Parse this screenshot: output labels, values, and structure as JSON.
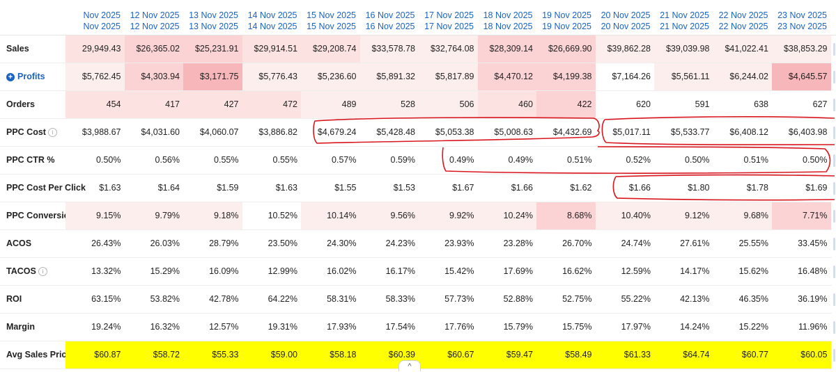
{
  "columns": [
    {
      "line1": "Nov 2025",
      "line2": "Nov 2025"
    },
    {
      "line1": "12 Nov 2025",
      "line2": "12 Nov 2025"
    },
    {
      "line1": "13 Nov 2025",
      "line2": "13 Nov 2025"
    },
    {
      "line1": "14 Nov 2025",
      "line2": "14 Nov 2025"
    },
    {
      "line1": "15 Nov 2025",
      "line2": "15 Nov 2025"
    },
    {
      "line1": "16 Nov 2025",
      "line2": "16 Nov 2025"
    },
    {
      "line1": "17 Nov 2025",
      "line2": "17 Nov 2025"
    },
    {
      "line1": "18 Nov 2025",
      "line2": "18 Nov 2025"
    },
    {
      "line1": "19 Nov 2025",
      "line2": "19 Nov 2025"
    },
    {
      "line1": "20 Nov 2025",
      "line2": "20 Nov 2025"
    },
    {
      "line1": "21 Nov 2025",
      "line2": "21 Nov 2025"
    },
    {
      "line1": "22 Nov 2025",
      "line2": "22 Nov 2025"
    },
    {
      "line1": "23 Nov 2025",
      "line2": "23 Nov 2025"
    }
  ],
  "rows": [
    {
      "key": "sales",
      "label": "Sales",
      "icon": null,
      "values": [
        "29,949.43",
        "$26,365.02",
        "$25,231.91",
        "$29,914.51",
        "$29,208.74",
        "$33,578.78",
        "$32,764.08",
        "$28,309.14",
        "$26,669.90",
        "$39,862.28",
        "$39,039.98",
        "$41,022.41",
        "$38,853.29"
      ],
      "shades": [
        2,
        3,
        3,
        2,
        2,
        1,
        1,
        3,
        3,
        1,
        1,
        1,
        1
      ]
    },
    {
      "key": "profits",
      "label": "Profits",
      "icon": "plus-circle-icon",
      "values": [
        "$5,762.45",
        "$4,303.94",
        "$3,171.75",
        "$5,776.43",
        "$5,236.60",
        "$5,891.32",
        "$5,817.89",
        "$4,470.12",
        "$4,199.38",
        "$7,164.26",
        "$5,561.11",
        "$6,244.02",
        "$4,645.57"
      ],
      "shades": [
        1,
        3,
        4,
        1,
        1,
        1,
        1,
        3,
        3,
        0,
        1,
        1,
        4
      ]
    },
    {
      "key": "orders",
      "label": "Orders",
      "icon": null,
      "values": [
        "454",
        "417",
        "427",
        "472",
        "489",
        "528",
        "506",
        "460",
        "422",
        "620",
        "591",
        "638",
        "627"
      ],
      "shades": [
        2,
        2,
        2,
        2,
        1,
        1,
        1,
        2,
        3,
        0,
        0,
        0,
        0
      ]
    },
    {
      "key": "ppc_cost",
      "label": "PPC Cost",
      "icon": "info-icon",
      "values": [
        "$3,988.67",
        "$4,031.60",
        "$4,060.07",
        "$3,886.82",
        "$4,679.24",
        "$5,428.48",
        "$5,053.38",
        "$5,008.63",
        "$4,432.69",
        "$5,017.11",
        "$5,533.77",
        "$6,408.12",
        "$6,403.98"
      ],
      "shades": [
        0,
        0,
        0,
        0,
        0,
        0,
        0,
        0,
        0,
        0,
        0,
        0,
        0
      ]
    },
    {
      "key": "ppc_ctr",
      "label": "PPC CTR %",
      "icon": null,
      "values": [
        "0.50%",
        "0.56%",
        "0.55%",
        "0.55%",
        "0.57%",
        "0.59%",
        "0.49%",
        "0.49%",
        "0.51%",
        "0.52%",
        "0.50%",
        "0.51%",
        "0.50%"
      ],
      "shades": [
        0,
        0,
        0,
        0,
        0,
        0,
        0,
        0,
        0,
        0,
        0,
        0,
        0
      ]
    },
    {
      "key": "ppc_cpc",
      "label": "PPC Cost Per Click",
      "icon": null,
      "values": [
        "$1.63",
        "$1.64",
        "$1.59",
        "$1.63",
        "$1.55",
        "$1.53",
        "$1.67",
        "$1.66",
        "$1.62",
        "$1.66",
        "$1.80",
        "$1.78",
        "$1.69"
      ],
      "shades": [
        0,
        0,
        0,
        0,
        0,
        0,
        0,
        0,
        0,
        0,
        0,
        0,
        0
      ]
    },
    {
      "key": "ppc_conversion",
      "label": "PPC Conversion",
      "icon": null,
      "values": [
        "9.15%",
        "9.79%",
        "9.18%",
        "10.52%",
        "10.14%",
        "9.56%",
        "9.92%",
        "10.24%",
        "8.68%",
        "10.40%",
        "9.12%",
        "9.68%",
        "7.71%"
      ],
      "shades": [
        1,
        1,
        1,
        0,
        1,
        1,
        1,
        1,
        3,
        1,
        1,
        1,
        3
      ]
    },
    {
      "key": "acos",
      "label": "ACOS",
      "icon": null,
      "values": [
        "26.43%",
        "26.03%",
        "28.79%",
        "23.50%",
        "24.30%",
        "24.23%",
        "23.93%",
        "23.28%",
        "26.70%",
        "24.74%",
        "27.61%",
        "25.55%",
        "33.45%"
      ],
      "shades": [
        0,
        0,
        0,
        0,
        0,
        0,
        0,
        0,
        0,
        0,
        0,
        0,
        0
      ]
    },
    {
      "key": "tacos",
      "label": "TACOS",
      "icon": "info-icon",
      "values": [
        "13.32%",
        "15.29%",
        "16.09%",
        "12.99%",
        "16.02%",
        "16.17%",
        "15.42%",
        "17.69%",
        "16.62%",
        "12.59%",
        "14.17%",
        "15.62%",
        "16.48%"
      ],
      "shades": [
        0,
        0,
        0,
        0,
        0,
        0,
        0,
        0,
        0,
        0,
        0,
        0,
        0
      ]
    },
    {
      "key": "roi",
      "label": "ROI",
      "icon": null,
      "values": [
        "63.15%",
        "53.82%",
        "42.78%",
        "64.22%",
        "58.31%",
        "58.33%",
        "57.73%",
        "52.88%",
        "52.75%",
        "55.22%",
        "42.13%",
        "46.35%",
        "36.19%"
      ],
      "shades": [
        0,
        0,
        0,
        0,
        0,
        0,
        0,
        0,
        0,
        0,
        0,
        0,
        0
      ]
    },
    {
      "key": "margin",
      "label": "Margin",
      "icon": null,
      "values": [
        "19.24%",
        "16.32%",
        "12.57%",
        "19.31%",
        "17.93%",
        "17.54%",
        "17.76%",
        "15.79%",
        "15.75%",
        "17.97%",
        "14.24%",
        "15.22%",
        "11.96%"
      ],
      "shades": [
        0,
        0,
        0,
        0,
        0,
        0,
        0,
        0,
        0,
        0,
        0,
        0,
        0
      ]
    },
    {
      "key": "avg_sales_price",
      "label": "Avg Sales Price",
      "icon": null,
      "highlight": "#ffff00",
      "values": [
        "$60.87",
        "$58.72",
        "$55.33",
        "$59.00",
        "$58.18",
        "$60.39",
        "$60.67",
        "$59.47",
        "$58.49",
        "$61.33",
        "$64.74",
        "$60.77",
        "$60.05"
      ],
      "shades": [
        0,
        0,
        0,
        0,
        0,
        0,
        0,
        0,
        0,
        0,
        0,
        0,
        0
      ]
    }
  ],
  "colors": {
    "header_text": "#1a64c4",
    "shade_1": "#fdeeee",
    "shade_2": "#fde2e2",
    "shade_3": "#fbd3d5",
    "shade_4": "#f7b6ba",
    "annotation": "#d9161e",
    "highlight": "#ffff00"
  },
  "controls": {
    "scroll_up_icon": "chevron-up-icon",
    "scroll_up_glyph": "^"
  }
}
